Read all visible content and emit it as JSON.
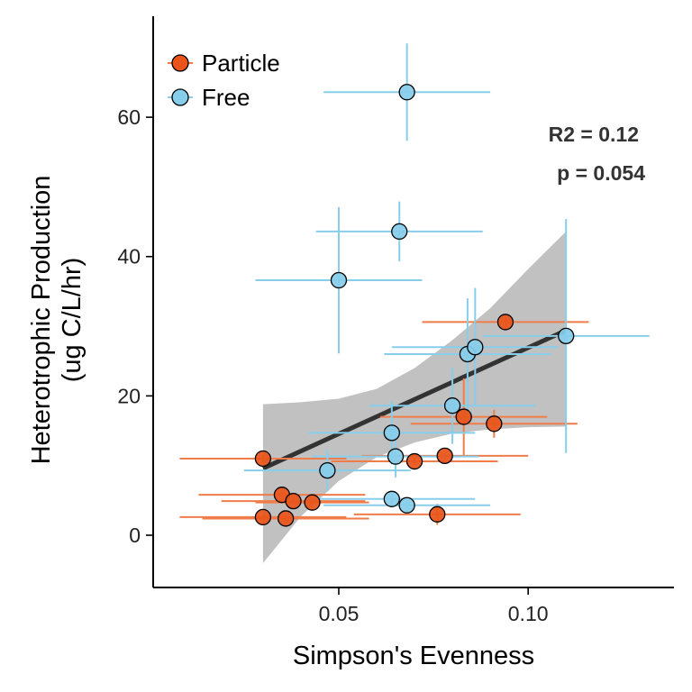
{
  "chart_data": {
    "type": "scatter",
    "xlabel": "Simpson's Evenness",
    "ylabel_lines": [
      "Heterotrophic Production",
      "(ug C/L/hr)"
    ],
    "xlim": [
      0.001,
      0.1385
    ],
    "ylim": [
      -7.5,
      74.5
    ],
    "x_ticks": [
      0.05,
      0.1
    ],
    "x_tick_labels": [
      "0.05",
      "0.10"
    ],
    "y_ticks": [
      0,
      20,
      40,
      60
    ],
    "y_tick_labels": [
      "0",
      "20",
      "40",
      "60"
    ],
    "grid": false,
    "legend_position": "top-left",
    "annotation_lines": [
      "R2 = 0.12",
      "p = 0.054"
    ],
    "series": [
      {
        "name": "Particle",
        "color": "#E8541A",
        "errorbar_color": "#F07C4A",
        "points": [
          {
            "x": 0.03,
            "y": 11.0,
            "xerr": 0.022,
            "yerr": 0.6
          },
          {
            "x": 0.035,
            "y": 5.8,
            "xerr": 0.022,
            "yerr": 0.4
          },
          {
            "x": 0.038,
            "y": 4.9,
            "xerr": 0.019,
            "yerr": 0.4
          },
          {
            "x": 0.043,
            "y": 4.7,
            "xerr": 0.015,
            "yerr": 0.4
          },
          {
            "x": 0.03,
            "y": 2.6,
            "xerr": 0.022,
            "yerr": 0.3
          },
          {
            "x": 0.036,
            "y": 2.4,
            "xerr": 0.022,
            "yerr": 0.3
          },
          {
            "x": 0.07,
            "y": 10.6,
            "xerr": 0.022,
            "yerr": 0.5
          },
          {
            "x": 0.078,
            "y": 11.4,
            "xerr": 0.022,
            "yerr": 0.5
          },
          {
            "x": 0.076,
            "y": 3.0,
            "xerr": 0.022,
            "yerr": 1.5
          },
          {
            "x": 0.083,
            "y": 17.0,
            "xerr": 0.022,
            "yerr": 5.5
          },
          {
            "x": 0.091,
            "y": 16.0,
            "xerr": 0.022,
            "yerr": 2.0
          },
          {
            "x": 0.094,
            "y": 30.6,
            "xerr": 0.022,
            "yerr": 1.0
          }
        ]
      },
      {
        "name": "Free",
        "color": "#87CEEB",
        "errorbar_color": "#87CEEB",
        "points": [
          {
            "x": 0.068,
            "y": 63.6,
            "xerr": 0.022,
            "yerr": 7.0
          },
          {
            "x": 0.066,
            "y": 43.6,
            "xerr": 0.022,
            "yerr": 4.3
          },
          {
            "x": 0.05,
            "y": 36.6,
            "xerr": 0.022,
            "yerr": 10.5
          },
          {
            "x": 0.047,
            "y": 9.3,
            "xerr": 0.022,
            "yerr": 3.0
          },
          {
            "x": 0.064,
            "y": 14.7,
            "xerr": 0.022,
            "yerr": 4.5
          },
          {
            "x": 0.065,
            "y": 11.3,
            "xerr": 0.022,
            "yerr": 3.0
          },
          {
            "x": 0.064,
            "y": 5.2,
            "xerr": 0.022,
            "yerr": 1.0
          },
          {
            "x": 0.068,
            "y": 4.3,
            "xerr": 0.022,
            "yerr": 1.0
          },
          {
            "x": 0.08,
            "y": 18.6,
            "xerr": 0.022,
            "yerr": 5.5
          },
          {
            "x": 0.084,
            "y": 26.0,
            "xerr": 0.022,
            "yerr": 8.0
          },
          {
            "x": 0.086,
            "y": 27.0,
            "xerr": 0.022,
            "yerr": 8.5
          },
          {
            "x": 0.11,
            "y": 28.6,
            "xerr": 0.022,
            "yerr": 16.8
          }
        ]
      }
    ],
    "fit": {
      "x_range": [
        0.03,
        0.11
      ],
      "band_x": [
        0.03,
        0.04,
        0.05,
        0.06,
        0.07,
        0.08,
        0.09,
        0.1,
        0.11
      ],
      "band_lower": [
        -4,
        2.7,
        7.8,
        11.2,
        13.3,
        14.6,
        15.2,
        15.5,
        15.6
      ],
      "band_upper": [
        18.8,
        19.1,
        19.6,
        21.0,
        24.0,
        28.0,
        32.6,
        38.2,
        43.6
      ],
      "line": [
        [
          0.03,
          9.6
        ],
        [
          0.11,
          29.4
        ]
      ],
      "band_color": "#BEBEBE",
      "line_color": "#333333"
    }
  }
}
